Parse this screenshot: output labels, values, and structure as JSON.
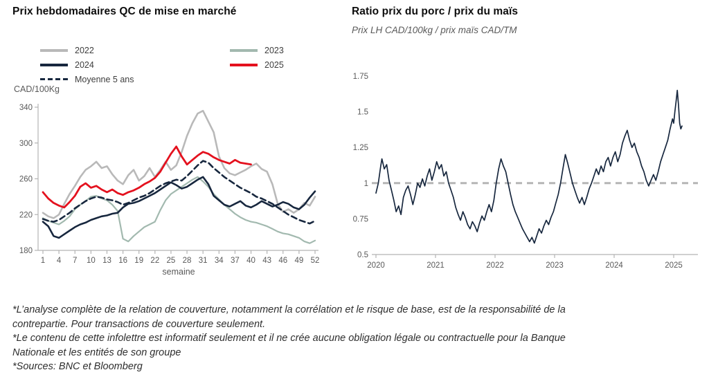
{
  "page": {
    "background": "#ffffff"
  },
  "chart_data": [
    {
      "type": "line",
      "title": "Prix hebdomadaires QC de mise en marché",
      "unit_label": "CAD/100Kg",
      "xlabel": "semaine",
      "x": [
        1,
        2,
        3,
        4,
        5,
        6,
        7,
        8,
        9,
        10,
        11,
        12,
        13,
        14,
        15,
        16,
        17,
        18,
        19,
        20,
        21,
        22,
        23,
        24,
        25,
        26,
        27,
        28,
        29,
        30,
        31,
        32,
        33,
        34,
        35,
        36,
        37,
        38,
        39,
        40,
        41,
        42,
        43,
        44,
        45,
        46,
        47,
        48,
        49,
        50,
        51,
        52
      ],
      "x_ticks": [
        1,
        4,
        7,
        10,
        13,
        16,
        19,
        22,
        25,
        28,
        31,
        34,
        37,
        40,
        43,
        46,
        49,
        52
      ],
      "ylim": [
        180,
        340
      ],
      "y_ticks": [
        180,
        220,
        260,
        300,
        340
      ],
      "axis_color": "#b3b3b3",
      "tick_label_color": "#595959",
      "legend_columns": 2,
      "series": [
        {
          "name": "2022",
          "color": "#b9b9b9",
          "style": "solid",
          "values": [
            222,
            218,
            216,
            220,
            232,
            243,
            252,
            262,
            270,
            274,
            279,
            272,
            274,
            265,
            258,
            254,
            264,
            270,
            258,
            263,
            272,
            262,
            270,
            279,
            270,
            275,
            290,
            308,
            322,
            333,
            336,
            324,
            312,
            285,
            272,
            266,
            264,
            267,
            270,
            274,
            277,
            271,
            268,
            254,
            232,
            223,
            226,
            222,
            226,
            233,
            230,
            240
          ]
        },
        {
          "name": "2023",
          "color": "#a2b9af",
          "style": "solid",
          "values": [
            216,
            213,
            211,
            209,
            213,
            218,
            226,
            231,
            235,
            240,
            241,
            238,
            236,
            231,
            224,
            193,
            190,
            196,
            201,
            206,
            209,
            212,
            225,
            236,
            243,
            247,
            251,
            255,
            259,
            262,
            257,
            251,
            243,
            237,
            231,
            226,
            221,
            217,
            214,
            212,
            211,
            209,
            207,
            204,
            201,
            199,
            198,
            196,
            194,
            190,
            188,
            191
          ]
        },
        {
          "name": "2024",
          "color": "#17273e",
          "style": "solid",
          "values": [
            212,
            207,
            196,
            194,
            198,
            202,
            206,
            209,
            211,
            214,
            216,
            218,
            219,
            221,
            222,
            228,
            232,
            233,
            235,
            238,
            241,
            244,
            248,
            252,
            256,
            253,
            249,
            251,
            255,
            259,
            262,
            254,
            241,
            236,
            231,
            229,
            232,
            235,
            230,
            228,
            231,
            235,
            232,
            229,
            231,
            234,
            232,
            228,
            226,
            231,
            239,
            246
          ]
        },
        {
          "name": "2025",
          "color": "#e4111e",
          "style": "solid",
          "values": [
            245,
            238,
            233,
            230,
            228,
            234,
            241,
            251,
            255,
            250,
            252,
            248,
            245,
            248,
            244,
            242,
            245,
            247,
            250,
            254,
            257,
            261,
            268,
            278,
            288,
            296,
            285,
            276,
            281,
            286,
            290,
            288,
            284,
            281,
            279,
            277,
            281,
            278,
            277,
            276
          ]
        },
        {
          "name": "Moyenne 5 ans",
          "color": "#17273e",
          "style": "dashed",
          "values": [
            215,
            213,
            212,
            214,
            218,
            222,
            227,
            231,
            235,
            238,
            240,
            239,
            237,
            236,
            234,
            231,
            233,
            236,
            239,
            241,
            244,
            248,
            252,
            255,
            257,
            259,
            258,
            263,
            269,
            275,
            280,
            278,
            272,
            267,
            262,
            258,
            254,
            250,
            247,
            244,
            240,
            238,
            235,
            232,
            228,
            224,
            220,
            217,
            214,
            212,
            210,
            213
          ]
        }
      ]
    },
    {
      "type": "line",
      "title": "Ratio prix du porc / prix du maïs",
      "subtitle": "Prix LH CAD/100kg / prix maïs CAD/TM",
      "ylim": [
        0.5,
        1.75
      ],
      "y_ticks": [
        0.5,
        0.75,
        1,
        1.25,
        1.5,
        1.75
      ],
      "x_ticks": [
        2020,
        2021,
        2022,
        2023,
        2024,
        2025
      ],
      "axis_color": "#b3b3b3",
      "tick_label_color": "#595959",
      "reference_line": {
        "y": 1,
        "color": "#b5b5b5",
        "style": "dashed"
      },
      "series": [
        {
          "name": "Ratio porc/maïs",
          "color": "#17273e",
          "points": [
            [
              2020.0,
              0.93
            ],
            [
              2020.04,
              1.0
            ],
            [
              2020.08,
              1.12
            ],
            [
              2020.1,
              1.17
            ],
            [
              2020.14,
              1.1
            ],
            [
              2020.18,
              1.13
            ],
            [
              2020.22,
              1.02
            ],
            [
              2020.26,
              0.95
            ],
            [
              2020.3,
              0.88
            ],
            [
              2020.34,
              0.8
            ],
            [
              2020.38,
              0.84
            ],
            [
              2020.42,
              0.78
            ],
            [
              2020.46,
              0.9
            ],
            [
              2020.5,
              0.95
            ],
            [
              2020.54,
              0.98
            ],
            [
              2020.58,
              0.92
            ],
            [
              2020.62,
              0.85
            ],
            [
              2020.66,
              0.92
            ],
            [
              2020.7,
              1.0
            ],
            [
              2020.74,
              0.97
            ],
            [
              2020.78,
              1.03
            ],
            [
              2020.82,
              0.98
            ],
            [
              2020.86,
              1.05
            ],
            [
              2020.9,
              1.1
            ],
            [
              2020.94,
              1.02
            ],
            [
              2020.98,
              1.08
            ],
            [
              2021.02,
              1.15
            ],
            [
              2021.06,
              1.1
            ],
            [
              2021.1,
              1.13
            ],
            [
              2021.14,
              1.05
            ],
            [
              2021.18,
              1.08
            ],
            [
              2021.22,
              1.0
            ],
            [
              2021.26,
              0.95
            ],
            [
              2021.3,
              0.9
            ],
            [
              2021.34,
              0.83
            ],
            [
              2021.38,
              0.78
            ],
            [
              2021.42,
              0.74
            ],
            [
              2021.46,
              0.8
            ],
            [
              2021.5,
              0.76
            ],
            [
              2021.54,
              0.71
            ],
            [
              2021.58,
              0.68
            ],
            [
              2021.62,
              0.73
            ],
            [
              2021.66,
              0.7
            ],
            [
              2021.7,
              0.66
            ],
            [
              2021.74,
              0.72
            ],
            [
              2021.78,
              0.77
            ],
            [
              2021.82,
              0.74
            ],
            [
              2021.86,
              0.8
            ],
            [
              2021.9,
              0.85
            ],
            [
              2021.94,
              0.8
            ],
            [
              2021.98,
              0.88
            ],
            [
              2022.02,
              1.0
            ],
            [
              2022.06,
              1.1
            ],
            [
              2022.1,
              1.17
            ],
            [
              2022.14,
              1.12
            ],
            [
              2022.18,
              1.08
            ],
            [
              2022.22,
              1.0
            ],
            [
              2022.26,
              0.92
            ],
            [
              2022.3,
              0.85
            ],
            [
              2022.34,
              0.8
            ],
            [
              2022.38,
              0.76
            ],
            [
              2022.42,
              0.72
            ],
            [
              2022.46,
              0.68
            ],
            [
              2022.5,
              0.65
            ],
            [
              2022.54,
              0.62
            ],
            [
              2022.58,
              0.59
            ],
            [
              2022.62,
              0.62
            ],
            [
              2022.66,
              0.58
            ],
            [
              2022.7,
              0.63
            ],
            [
              2022.74,
              0.68
            ],
            [
              2022.78,
              0.65
            ],
            [
              2022.82,
              0.7
            ],
            [
              2022.86,
              0.74
            ],
            [
              2022.9,
              0.71
            ],
            [
              2022.94,
              0.76
            ],
            [
              2022.98,
              0.8
            ],
            [
              2023.02,
              0.86
            ],
            [
              2023.06,
              0.92
            ],
            [
              2023.1,
              1.0
            ],
            [
              2023.14,
              1.1
            ],
            [
              2023.18,
              1.2
            ],
            [
              2023.22,
              1.14
            ],
            [
              2023.26,
              1.07
            ],
            [
              2023.3,
              1.0
            ],
            [
              2023.34,
              0.95
            ],
            [
              2023.38,
              0.9
            ],
            [
              2023.42,
              0.86
            ],
            [
              2023.46,
              0.9
            ],
            [
              2023.5,
              0.85
            ],
            [
              2023.54,
              0.9
            ],
            [
              2023.58,
              0.96
            ],
            [
              2023.62,
              1.0
            ],
            [
              2023.66,
              1.05
            ],
            [
              2023.7,
              1.1
            ],
            [
              2023.74,
              1.06
            ],
            [
              2023.78,
              1.12
            ],
            [
              2023.82,
              1.08
            ],
            [
              2023.86,
              1.15
            ],
            [
              2023.9,
              1.18
            ],
            [
              2023.94,
              1.12
            ],
            [
              2023.98,
              1.18
            ],
            [
              2024.02,
              1.22
            ],
            [
              2024.06,
              1.15
            ],
            [
              2024.1,
              1.2
            ],
            [
              2024.14,
              1.28
            ],
            [
              2024.18,
              1.33
            ],
            [
              2024.22,
              1.37
            ],
            [
              2024.26,
              1.3
            ],
            [
              2024.3,
              1.25
            ],
            [
              2024.34,
              1.28
            ],
            [
              2024.38,
              1.22
            ],
            [
              2024.42,
              1.18
            ],
            [
              2024.46,
              1.12
            ],
            [
              2024.5,
              1.08
            ],
            [
              2024.54,
              1.02
            ],
            [
              2024.58,
              0.98
            ],
            [
              2024.62,
              1.02
            ],
            [
              2024.66,
              1.06
            ],
            [
              2024.7,
              1.02
            ],
            [
              2024.74,
              1.08
            ],
            [
              2024.78,
              1.15
            ],
            [
              2024.82,
              1.2
            ],
            [
              2024.86,
              1.25
            ],
            [
              2024.9,
              1.3
            ],
            [
              2024.94,
              1.38
            ],
            [
              2024.98,
              1.45
            ],
            [
              2025.0,
              1.42
            ],
            [
              2025.02,
              1.5
            ],
            [
              2025.04,
              1.57
            ],
            [
              2025.06,
              1.65
            ],
            [
              2025.08,
              1.55
            ],
            [
              2025.1,
              1.42
            ],
            [
              2025.12,
              1.38
            ],
            [
              2025.14,
              1.4
            ]
          ]
        }
      ]
    }
  ],
  "footnotes": {
    "paragraphs": [
      "*L’analyse complète de la relation de couverture, notamment la corrélation et le risque de base, est de la responsabilité de la contrepartie. Pour transactions de couverture seulement.",
      "*Le contenu de cette infolettre est informatif seulement et il ne crée aucune obligation légale ou contractuelle pour la Banque Nationale et les entités de son groupe",
      "*Sources: BNC et Bloomberg"
    ]
  }
}
